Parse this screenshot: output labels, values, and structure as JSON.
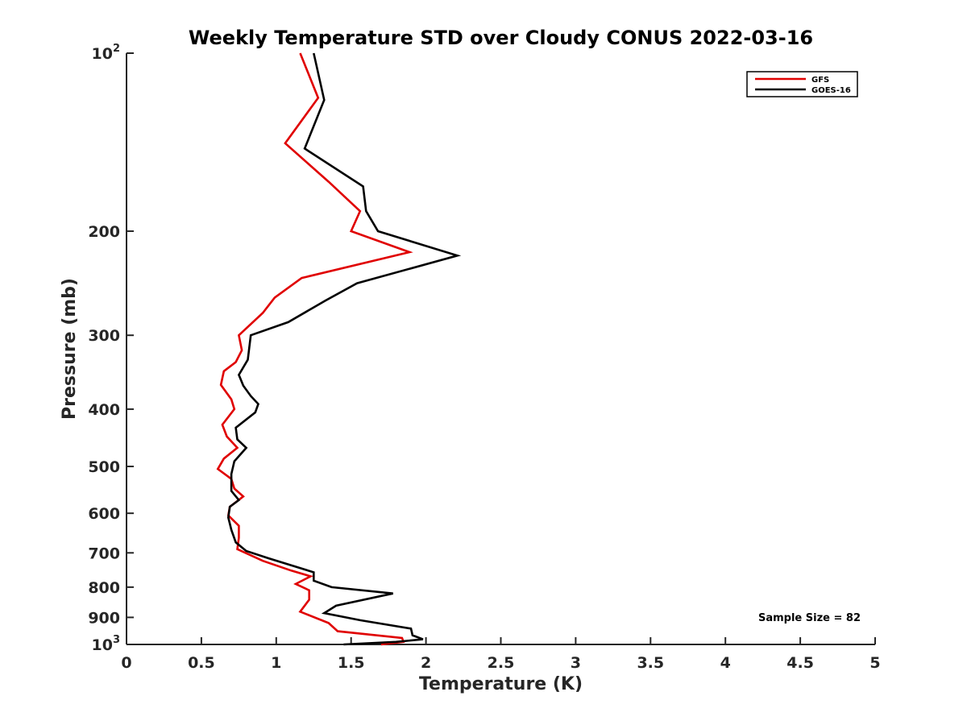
{
  "chart_data": {
    "type": "line",
    "title": "Weekly Temperature STD over Cloudy CONUS 2022-03-16",
    "xlabel": "Temperature (K)",
    "ylabel": "Pressure (mb)",
    "xlim": [
      0,
      5
    ],
    "ylim": [
      1000,
      100
    ],
    "y_scale": "log",
    "y_reversed": true,
    "x_ticks": [
      0,
      0.5,
      1,
      1.5,
      2,
      2.5,
      3,
      3.5,
      4,
      4.5,
      5
    ],
    "x_tick_labels": [
      "0",
      "0.5",
      "1",
      "1.5",
      "2",
      "2.5",
      "3",
      "3.5",
      "4",
      "4.5",
      "5"
    ],
    "y_ticks": [
      {
        "value": 100,
        "base": "10",
        "exp": "2"
      },
      {
        "value": 200,
        "label": "200"
      },
      {
        "value": 300,
        "label": "300"
      },
      {
        "value": 400,
        "label": "400"
      },
      {
        "value": 500,
        "label": "500"
      },
      {
        "value": 600,
        "label": "600"
      },
      {
        "value": 700,
        "label": "700"
      },
      {
        "value": 800,
        "label": "800"
      },
      {
        "value": 900,
        "label": "900"
      },
      {
        "value": 1000,
        "base": "10",
        "exp": "3"
      }
    ],
    "grid": false,
    "legend_position": "top-right",
    "annotation": "Sample Size = 82",
    "series": [
      {
        "name": "GFS",
        "color": "#e00000",
        "points": [
          [
            1.16,
            100
          ],
          [
            1.28,
            119
          ],
          [
            1.06,
            142
          ],
          [
            1.35,
            165
          ],
          [
            1.56,
            185
          ],
          [
            1.5,
            200
          ],
          [
            1.89,
            217
          ],
          [
            1.17,
            240
          ],
          [
            0.99,
            259
          ],
          [
            0.91,
            275
          ],
          [
            0.75,
            300
          ],
          [
            0.77,
            318
          ],
          [
            0.73,
            333
          ],
          [
            0.65,
            345
          ],
          [
            0.63,
            364
          ],
          [
            0.7,
            385
          ],
          [
            0.72,
            400
          ],
          [
            0.64,
            425
          ],
          [
            0.67,
            445
          ],
          [
            0.74,
            465
          ],
          [
            0.65,
            485
          ],
          [
            0.61,
            505
          ],
          [
            0.7,
            525
          ],
          [
            0.72,
            545
          ],
          [
            0.78,
            562
          ],
          [
            0.69,
            585
          ],
          [
            0.68,
            605
          ],
          [
            0.75,
            630
          ],
          [
            0.75,
            660
          ],
          [
            0.74,
            690
          ],
          [
            0.91,
            722
          ],
          [
            1.1,
            750
          ],
          [
            1.23,
            767
          ],
          [
            1.13,
            790
          ],
          [
            1.22,
            810
          ],
          [
            1.22,
            840
          ],
          [
            1.16,
            880
          ],
          [
            1.35,
            920
          ],
          [
            1.41,
            950
          ],
          [
            1.84,
            975
          ],
          [
            1.85,
            990
          ],
          [
            1.7,
            1000
          ]
        ]
      },
      {
        "name": "GOES-16",
        "color": "#000000",
        "points": [
          [
            1.25,
            100
          ],
          [
            1.32,
            120
          ],
          [
            1.19,
            145
          ],
          [
            1.58,
            168
          ],
          [
            1.6,
            185
          ],
          [
            1.68,
            200
          ],
          [
            2.21,
            220
          ],
          [
            1.54,
            245
          ],
          [
            1.33,
            262
          ],
          [
            1.08,
            285
          ],
          [
            0.83,
            300
          ],
          [
            0.81,
            330
          ],
          [
            0.75,
            350
          ],
          [
            0.78,
            365
          ],
          [
            0.83,
            380
          ],
          [
            0.88,
            392
          ],
          [
            0.86,
            405
          ],
          [
            0.73,
            430
          ],
          [
            0.74,
            450
          ],
          [
            0.8,
            465
          ],
          [
            0.72,
            490
          ],
          [
            0.7,
            515
          ],
          [
            0.7,
            550
          ],
          [
            0.75,
            570
          ],
          [
            0.69,
            585
          ],
          [
            0.68,
            610
          ],
          [
            0.7,
            640
          ],
          [
            0.73,
            672
          ],
          [
            0.8,
            695
          ],
          [
            0.95,
            715
          ],
          [
            1.25,
            755
          ],
          [
            1.25,
            780
          ],
          [
            1.37,
            800
          ],
          [
            1.78,
            820
          ],
          [
            1.4,
            860
          ],
          [
            1.32,
            885
          ],
          [
            1.56,
            910
          ],
          [
            1.9,
            940
          ],
          [
            1.91,
            965
          ],
          [
            1.98,
            980
          ],
          [
            1.8,
            990
          ],
          [
            1.45,
            1000
          ]
        ]
      }
    ]
  }
}
